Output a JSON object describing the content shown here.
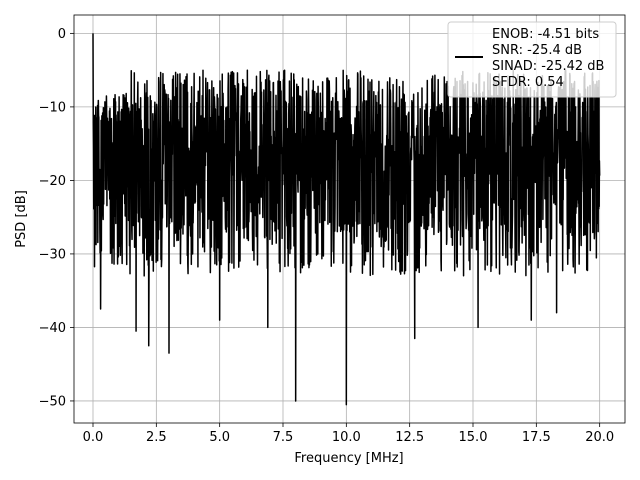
{
  "chart_data": {
    "type": "line",
    "xlabel": "Frequency [MHz]",
    "ylabel": "PSD [dB]",
    "xlim": [
      -0.75,
      21.0
    ],
    "ylim": [
      -53.0,
      2.5
    ],
    "xticks": [
      0.0,
      2.5,
      5.0,
      7.5,
      10.0,
      12.5,
      15.0,
      17.5,
      20.0
    ],
    "xtick_labels": [
      "0.0",
      "2.5",
      "5.0",
      "7.5",
      "10.0",
      "12.5",
      "15.0",
      "17.5",
      "20.0"
    ],
    "yticks": [
      0,
      -10,
      -20,
      -30,
      -40,
      -50
    ],
    "ytick_labels": [
      "0",
      "−10",
      "−20",
      "−30",
      "−40",
      "−50"
    ],
    "grid": true,
    "legend_placement": "top-right",
    "series": [
      {
        "name": "",
        "color": "#000000",
        "description_values": "dense noise-like PSD between about -5 and -30 dB with dips to -50 dB",
        "x_start": 0.0,
        "x_end": 20.0,
        "n_points": 2000
      }
    ],
    "legend_entries": [
      "ENOB: -4.51 bits",
      "SNR: -25.4 dB",
      "SINAD: -25.42 dB",
      "SFDR: 0.54"
    ],
    "notable_points": [
      {
        "x": 0.0,
        "y": 0.0
      },
      {
        "x": 0.3,
        "y": -37.5
      },
      {
        "x": 1.7,
        "y": -40.5
      },
      {
        "x": 2.2,
        "y": -42.5
      },
      {
        "x": 3.0,
        "y": -43.5
      },
      {
        "x": 5.0,
        "y": -39.0
      },
      {
        "x": 6.9,
        "y": -40.0
      },
      {
        "x": 8.0,
        "y": -50.0
      },
      {
        "x": 10.0,
        "y": -50.5
      },
      {
        "x": 12.7,
        "y": -41.5
      },
      {
        "x": 15.2,
        "y": -40.0
      },
      {
        "x": 17.3,
        "y": -39.0
      },
      {
        "x": 18.3,
        "y": -38.0
      }
    ]
  }
}
